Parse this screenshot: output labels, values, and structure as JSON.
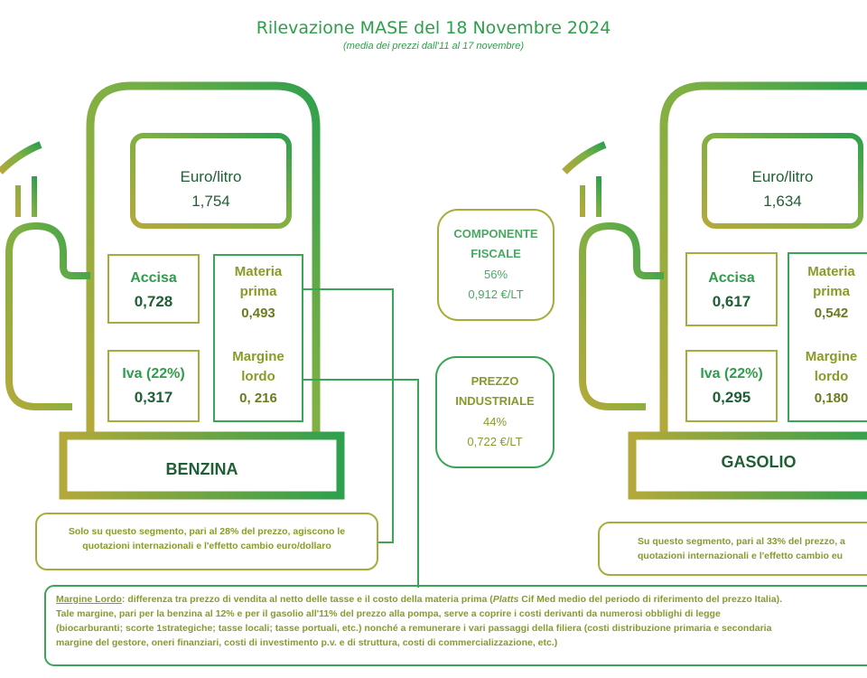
{
  "header": {
    "title": "Rilevazione MASE del 18 Novembre 2024",
    "subtitle": "(media dei prezzi dall'11 al 17 novembre)"
  },
  "benzina": {
    "label": "BENZINA",
    "price_label": "Euro/litro",
    "price_value": "1,754",
    "accisa_label": "Accisa",
    "accisa_value": "0,728",
    "iva_label": "Iva (22%)",
    "iva_value": "0,317",
    "materia_label_1": "Materia",
    "materia_label_2": "prima",
    "materia_value": "0,493",
    "margine_label_1": "Margine",
    "margine_label_2": "lordo",
    "margine_value": "0, 216",
    "note_1": "Solo su questo segmento, pari al 28% del prezzo, agiscono le",
    "note_2": "quotazioni internazionali e l'effetto cambio euro/dollaro"
  },
  "gasolio": {
    "label": "GASOLIO",
    "price_label": "Euro/litro",
    "price_value": "1,634",
    "accisa_label": "Accisa",
    "accisa_value": "0,617",
    "iva_label": "Iva (22%)",
    "iva_value": "0,295",
    "materia_label_1": "Materia",
    "materia_label_2": "prima",
    "materia_value": "0,542",
    "margine_label_1": "Margine",
    "margine_label_2": "lordo",
    "margine_value": "0,180",
    "note_1": "Su questo segmento, pari al 33% del prezzo, a",
    "note_2": "quotazioni internazionali e l'effetto cambio eu"
  },
  "componente_fiscale": {
    "line1": "COMPONENTE",
    "line2": "FISCALE",
    "pct": "56%",
    "value": "0,912 €/LT"
  },
  "prezzo_industriale": {
    "line1": "PREZZO",
    "line2": "INDUSTRIALE",
    "pct": "44%",
    "value": "0,722 €/LT"
  },
  "footnote": {
    "term": "Margine Lordo",
    "line1_a": ": differenza tra prezzo di vendita al netto delle tasse e il costo della materia prima (",
    "platts": "Platts",
    "line1_b": " Cif Med medio del periodo di riferimento del prezzo Italia).",
    "line2": "Tale margine, pari per la benzina  al 12% e per il gasolio all'11% del prezzo alla pompa, serve a coprire i costi derivanti da numerosi obblighi di legge",
    "line3": "(biocarburanti; scorte 1strategiche; tasse locali; tasse portuali, etc.) nonché a remunerare i vari passaggi della filiera (costi distribuzione primaria e secondaria",
    "line4": "margine del gestore, oneri finanziari, costi di investimento p.v. e di struttura, costi di commercializzazione, etc.)"
  },
  "colors": {
    "green": "#2e9e4a",
    "olive": "#a7ad3a",
    "dark": "#1f5f35"
  }
}
